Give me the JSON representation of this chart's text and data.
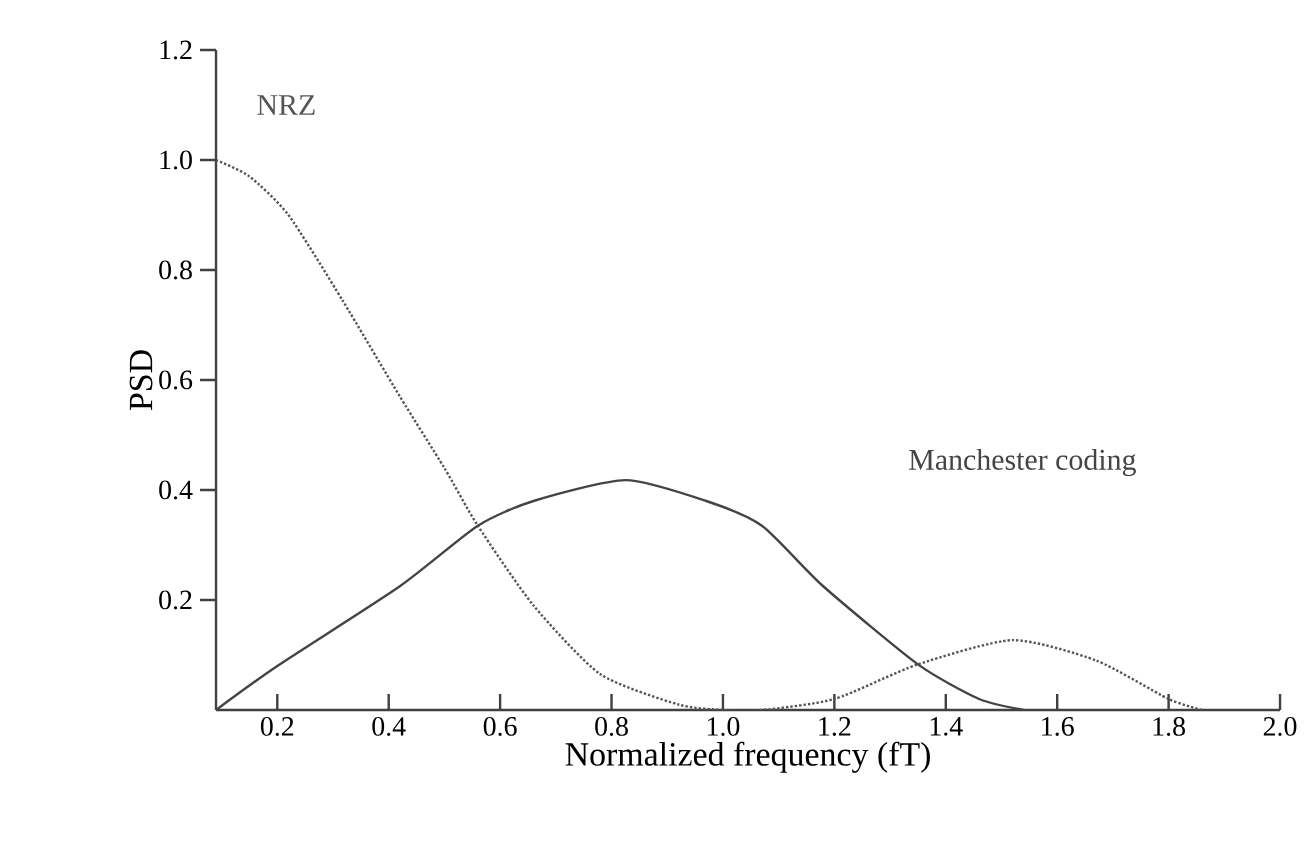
{
  "chart_data": {
    "type": "line",
    "xlabel": "Normalized frequency (fT)",
    "ylabel": "PSD",
    "xlim": [
      0.09,
      2.0
    ],
    "ylim": [
      0,
      1.2
    ],
    "xticks": [
      0.2,
      0.4,
      0.6,
      0.8,
      "1.0",
      1.2,
      1.4,
      1.6,
      1.8,
      "2.0"
    ],
    "yticks": [
      0.2,
      0.4,
      0.6,
      0.8,
      "1.0",
      1.2
    ],
    "grid": false,
    "marker": "none",
    "series": [
      {
        "name": "NRZ",
        "color": "#555555",
        "line_style": "dotted",
        "x": [
          0.09,
          0.15,
          0.22,
          0.317,
          0.42,
          0.5,
          0.56,
          0.66,
          0.78,
          0.92,
          1.0,
          1.07,
          1.2,
          1.35,
          1.52,
          1.67,
          1.8,
          1.86
        ],
        "values": [
          1.0,
          0.97,
          0.9,
          0.745,
          0.57,
          0.44,
          0.335,
          0.19,
          0.065,
          0.01,
          0.0,
          0.0,
          0.02,
          0.083,
          0.127,
          0.09,
          0.02,
          0.0
        ]
      },
      {
        "name": "Manchester coding",
        "color": "#444444",
        "line_style": "solid",
        "x": [
          0.09,
          0.2,
          0.42,
          0.56,
          0.66,
          0.825,
          0.97,
          1.07,
          1.18,
          1.35,
          1.46,
          1.54
        ],
        "values": [
          0.0,
          0.08,
          0.225,
          0.335,
          0.38,
          0.418,
          0.38,
          0.335,
          0.225,
          0.083,
          0.02,
          0.0
        ]
      }
    ]
  }
}
